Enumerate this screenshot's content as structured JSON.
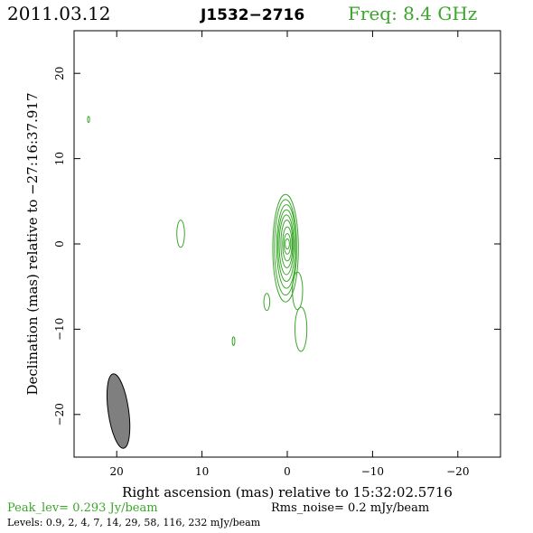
{
  "header": {
    "date": "2011.03.12",
    "source": "J1532−2716",
    "frequency": "Freq: 8.4 GHz"
  },
  "colors": {
    "contour": "#3aa62a",
    "beam_fill": "#7f7f7f",
    "axes": "#000000"
  },
  "chart_data": {
    "type": "contour",
    "xlabel": "Right ascension (mas) relative to 15:32:02.5716",
    "ylabel": "Declination (mas) relative to −27:16:37.917",
    "xlim": [
      25,
      -25
    ],
    "ylim": [
      -25,
      25
    ],
    "x_ticks": [
      20,
      10,
      0,
      -10,
      -20
    ],
    "x_tick_labels": [
      "20",
      "10",
      "0",
      "−10",
      "−20"
    ],
    "y_ticks": [
      20,
      10,
      0,
      -10,
      -20
    ],
    "y_tick_labels": [
      "20",
      "10",
      "0",
      "−10",
      "−20"
    ],
    "peak_level": "Peak_lev=  0.293 Jy/beam",
    "rms_noise": "Rms_noise=   0.2 mJy/beam",
    "levels_text": "Levels: 0.9,    2,    4,    7,   14,   29,   58, 116, 232 mJy/beam",
    "levels_mJy_per_beam": [
      0.9,
      2,
      4,
      7,
      14,
      29,
      58,
      116,
      232
    ],
    "core": {
      "x": 0.0,
      "y": 0.0
    },
    "core_contours": [
      {
        "rx": 1.5,
        "ry": 6.3,
        "dx": 0.2,
        "dy": -0.5
      },
      {
        "rx": 1.3,
        "ry": 5.6,
        "dx": 0.2,
        "dy": -0.4
      },
      {
        "rx": 1.15,
        "ry": 4.9,
        "dx": 0.1,
        "dy": -0.3
      },
      {
        "rx": 1.0,
        "ry": 4.2,
        "dx": 0.1,
        "dy": -0.2
      },
      {
        "rx": 0.85,
        "ry": 3.5,
        "dx": 0.1,
        "dy": -0.1
      },
      {
        "rx": 0.7,
        "ry": 2.8,
        "dx": 0.05,
        "dy": 0.0
      },
      {
        "rx": 0.55,
        "ry": 2.0,
        "dx": 0.0,
        "dy": 0.0
      },
      {
        "rx": 0.4,
        "ry": 1.2,
        "dx": 0.0,
        "dy": 0.0
      },
      {
        "rx": 0.25,
        "ry": 0.6,
        "dx": 0.0,
        "dy": 0.0
      }
    ],
    "features": [
      {
        "x": 12.5,
        "y": 1.2,
        "rx": 0.45,
        "ry": 1.6
      },
      {
        "x": 23.3,
        "y": 14.6,
        "rx": 0.12,
        "ry": 0.35
      },
      {
        "x": 2.4,
        "y": -6.8,
        "rx": 0.35,
        "ry": 1.0
      },
      {
        "x": 6.3,
        "y": -11.4,
        "rx": 0.15,
        "ry": 0.5
      },
      {
        "x": -1.6,
        "y": -10.0,
        "rx": 0.7,
        "ry": 2.6
      }
    ],
    "jet_extension": {
      "x": -1.2,
      "y": -5.5,
      "rx": 0.6,
      "ry": 2.2
    },
    "beam": {
      "x": 19.8,
      "y": -19.6,
      "major_mas": 8.8,
      "minor_mas": 2.4,
      "pa_deg": 8
    }
  }
}
